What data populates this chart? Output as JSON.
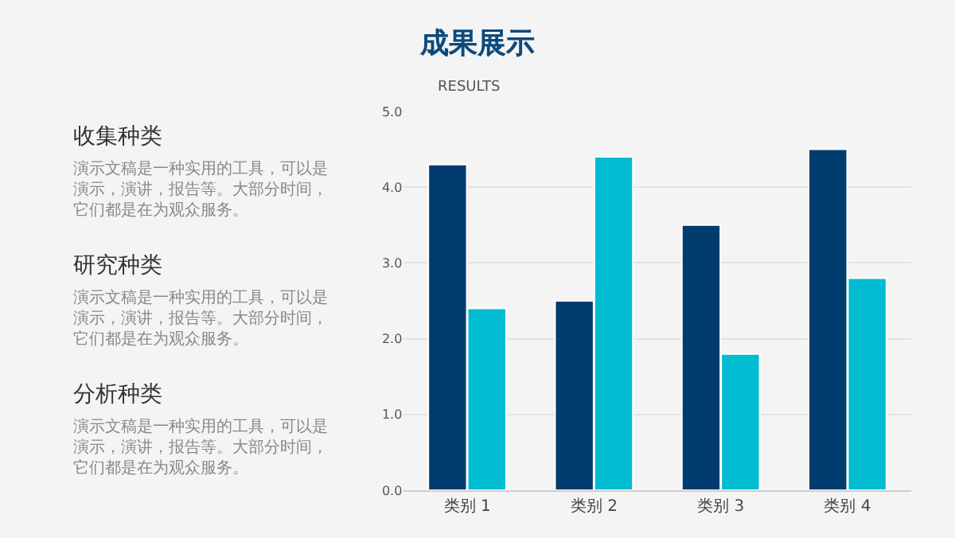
{
  "chart_data": {
    "type": "bar",
    "title": "成果展示",
    "subtitle": "RESULTS",
    "categories": [
      "类别 1",
      "类别 2",
      "类别 3",
      "类别 4"
    ],
    "series": [
      {
        "color": "#003d6e",
        "values": [
          4.3,
          2.5,
          3.5,
          4.5
        ]
      },
      {
        "color": "#00bcd0",
        "values": [
          2.4,
          4.4,
          1.8,
          2.8
        ]
      }
    ],
    "ylim": [
      0,
      5
    ],
    "yticks": [
      {
        "value": 0,
        "label": "0.0"
      },
      {
        "value": 1,
        "label": "1.0"
      },
      {
        "value": 2,
        "label": "2.0"
      },
      {
        "value": 3,
        "label": "3.0"
      },
      {
        "value": 4,
        "label": "4.0"
      },
      {
        "value": 5,
        "label": "5.0"
      }
    ],
    "grid": "y",
    "annotations": [
      "收集种类",
      "演示文稿是一种实用的工具，可以是演示，演讲，报告等。大部分时间，它们都是在为观众服务。",
      "研究种类",
      "演示文稿是一种实用的工具，可以是演示，演讲，报告等。大部分时间，它们都是在为观众服务。",
      "分析种类",
      "演示文稿是一种实用的工具，可以是演示，演讲，报告等。大部分时间，它们都是在为观众服务。"
    ]
  }
}
